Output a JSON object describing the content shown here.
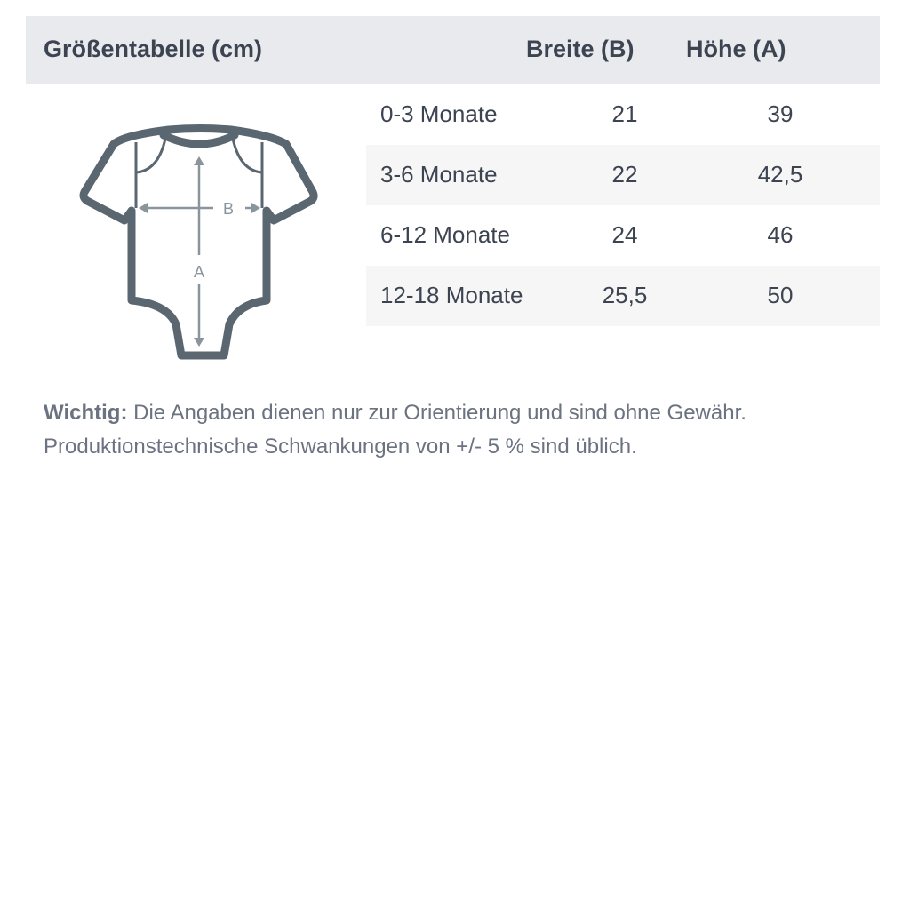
{
  "header": {
    "title": "Größentabelle (cm)",
    "col_width": "Breite (B)",
    "col_height": "Höhe (A)"
  },
  "rows": [
    {
      "size": "0-3 Monate",
      "width": "21",
      "height": "39"
    },
    {
      "size": "3-6 Monate",
      "width": "22",
      "height": "42,5"
    },
    {
      "size": "6-12 Monate",
      "width": "24",
      "height": "46"
    },
    {
      "size": "12-18 Monate",
      "width": "25,5",
      "height": "50"
    }
  ],
  "diagram": {
    "label_b": "B",
    "label_a": "A",
    "outline_color": "#5b6770",
    "arrow_color": "#8a949c"
  },
  "note": {
    "label": "Wichtig:",
    "line1": "Die Angaben dienen nur zur Orientierung und sind ohne Gewähr.",
    "line2": "Produktionstechnische Schwankungen von +/- 5 % sind üblich."
  }
}
